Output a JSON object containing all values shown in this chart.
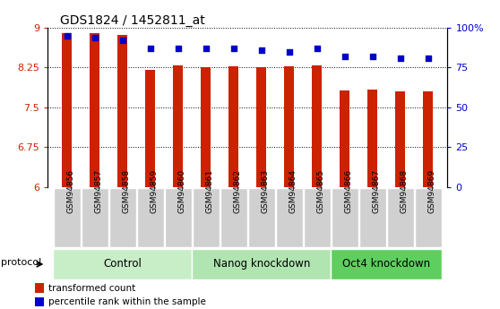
{
  "title": "GDS1824 / 1452811_at",
  "samples": [
    "GSM94856",
    "GSM94857",
    "GSM94858",
    "GSM94859",
    "GSM94860",
    "GSM94861",
    "GSM94862",
    "GSM94863",
    "GSM94864",
    "GSM94865",
    "GSM94866",
    "GSM94867",
    "GSM94868",
    "GSM94869"
  ],
  "transformed_count": [
    8.9,
    8.9,
    8.87,
    8.2,
    8.3,
    8.25,
    8.28,
    8.25,
    8.27,
    8.3,
    7.82,
    7.84,
    7.8,
    7.8
  ],
  "percentile_rank": [
    95,
    94,
    92,
    87,
    87,
    87,
    87,
    86,
    85,
    87,
    82,
    82,
    81,
    81
  ],
  "ylim_left": [
    6,
    9
  ],
  "ylim_right": [
    0,
    100
  ],
  "yticks_left": [
    6,
    6.75,
    7.5,
    8.25,
    9
  ],
  "yticks_right": [
    0,
    25,
    50,
    75,
    100
  ],
  "ytick_labels_left": [
    "6",
    "6.75",
    "7.5",
    "8.25",
    "9"
  ],
  "ytick_labels_right": [
    "0",
    "25",
    "50",
    "75",
    "100%"
  ],
  "groups": [
    {
      "label": "Control",
      "start": 0,
      "end": 4
    },
    {
      "label": "Nanog knockdown",
      "start": 5,
      "end": 9
    },
    {
      "label": "Oct4 knockdown",
      "start": 10,
      "end": 13
    }
  ],
  "group_colors": [
    "#c8eec8",
    "#b0e4b0",
    "#5ecf5e"
  ],
  "protocol_label": "protocol",
  "bar_color": "#cc2200",
  "dot_color": "#0000cc",
  "bar_width": 0.35,
  "sample_label_bg": "#d0d0d0",
  "legend_square_red": "#cc2200",
  "legend_square_blue": "#0000cc",
  "legend_text_red": "transformed count",
  "legend_text_blue": "percentile rank within the sample"
}
